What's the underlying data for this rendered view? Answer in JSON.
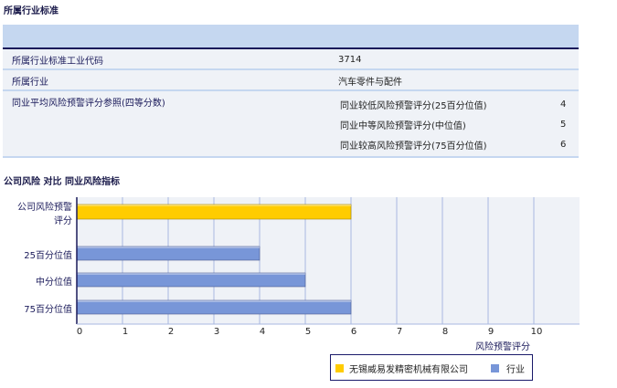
{
  "section1": {
    "title": "所属行业标准",
    "rows": [
      {
        "label": "所属行业标准工业代码",
        "value": "3714"
      },
      {
        "label": "所属行业",
        "value": "汽车零件与配件"
      },
      {
        "label": "同业平均风险预警评分参照(四等分数)"
      }
    ],
    "sub": [
      {
        "label": "同业较低风险预警评分(25百分位值)",
        "value": "4"
      },
      {
        "label": "同业中等风险预警评分(中位值)",
        "value": "5"
      },
      {
        "label": "同业较高风险预警评分(75百分位值)",
        "value": "6"
      }
    ]
  },
  "chart_data": {
    "type": "bar",
    "orientation": "horizontal",
    "title": "公司风险 对比 同业风险指标",
    "categories": [
      "公司风险预警评分",
      "25百分位值",
      "中分位值",
      "75百分位值"
    ],
    "values": [
      6,
      4,
      5,
      6
    ],
    "series_of": [
      "无锡威易发精密机械有限公司",
      "行业",
      "行业",
      "行业"
    ],
    "xlabel": "风险预警评分",
    "xlim": [
      0,
      11
    ],
    "xticks": [
      "0",
      "1",
      "2",
      "3",
      "4",
      "5",
      "6",
      "7",
      "8",
      "9",
      "10"
    ],
    "grid": true,
    "legend": {
      "placement": "bottom-right",
      "items": [
        {
          "name": "无锡威易发精密机械有限公司",
          "color": "#ffcc00"
        },
        {
          "name": "行业",
          "color": "#7896d8"
        }
      ]
    }
  }
}
